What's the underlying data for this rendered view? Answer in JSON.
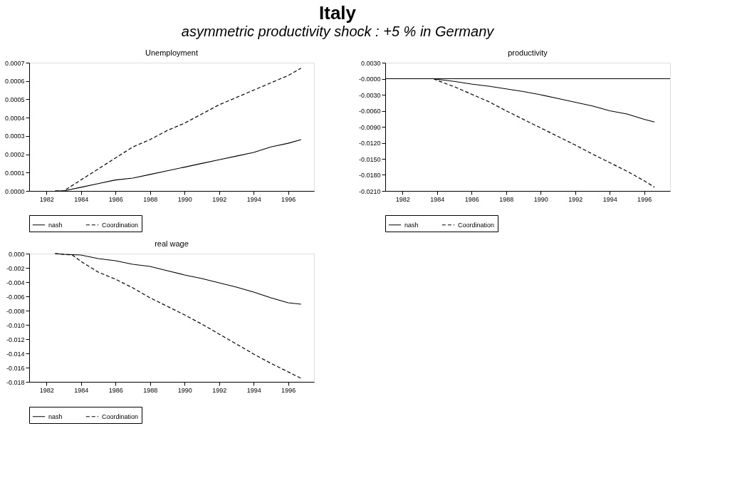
{
  "chart_data": [
    {
      "type": "line",
      "title": "Unemployment",
      "annotations": [
        "Italy",
        "asymmetric productivity shock : +5 % in Germany"
      ],
      "legend": "bottom",
      "grid": false,
      "marker": "none",
      "xlim": [
        1981,
        1997.5
      ],
      "xticks": [
        1982,
        1984,
        1986,
        1988,
        1990,
        1992,
        1994,
        1996
      ],
      "ylim": [
        0,
        0.0007
      ],
      "yticks": [
        {
          "value": 0,
          "label": "0.0000"
        },
        {
          "value": 0.0001,
          "label": "0.0001"
        },
        {
          "value": 0.0002,
          "label": "0.0002"
        },
        {
          "value": 0.0003,
          "label": "0.0003"
        },
        {
          "value": 0.0004,
          "label": "0.0004"
        },
        {
          "value": 0.0005,
          "label": "0.0005"
        },
        {
          "value": 0.0006,
          "label": "0.0006"
        },
        {
          "value": 0.0007,
          "label": "0.0007"
        }
      ],
      "series": [
        {
          "name": "nash",
          "color": "#000000",
          "line_style": "solid",
          "x": [
            1982.5,
            1983,
            1984,
            1985,
            1986,
            1987,
            1988,
            1989,
            1990,
            1991,
            1992,
            1993,
            1994,
            1995,
            1996,
            1996.75
          ],
          "values": [
            0,
            0,
            2e-05,
            4e-05,
            6e-05,
            7e-05,
            9e-05,
            0.00011,
            0.00013,
            0.00015,
            0.00017,
            0.00019,
            0.00021,
            0.00024,
            0.00026,
            0.00028
          ]
        },
        {
          "name": "Coordination",
          "color": "#000000",
          "line_style": "dashed",
          "x": [
            1982.5,
            1983,
            1984,
            1985,
            1986,
            1987,
            1988,
            1989,
            1990,
            1991,
            1992,
            1993,
            1994,
            1995,
            1996,
            1996.75
          ],
          "values": [
            0,
            0,
            6e-05,
            0.00012,
            0.00018,
            0.00024,
            0.00028,
            0.00033,
            0.00037,
            0.00042,
            0.00047,
            0.00051,
            0.00055,
            0.00059,
            0.00063,
            0.00067
          ]
        }
      ]
    },
    {
      "type": "line",
      "title": "productivity",
      "legend": "bottom",
      "grid": false,
      "marker": "none",
      "xlim": [
        1981,
        1997.5
      ],
      "xticks": [
        1982,
        1984,
        1986,
        1988,
        1990,
        1992,
        1994,
        1996
      ],
      "ylim": [
        -0.021,
        0.003
      ],
      "yticks": [
        {
          "value": 0.003,
          "label": "0.0030"
        },
        {
          "value": 0,
          "label": "-0.0000"
        },
        {
          "value": -0.003,
          "label": "-0.0030"
        },
        {
          "value": -0.006,
          "label": "-0.0060"
        },
        {
          "value": -0.009,
          "label": "-0.0090"
        },
        {
          "value": -0.012,
          "label": "-0.0120"
        },
        {
          "value": -0.015,
          "label": "-0.0150"
        },
        {
          "value": -0.018,
          "label": "-0.0180"
        },
        {
          "value": -0.021,
          "label": "-0.0210"
        }
      ],
      "ref_lines": [
        {
          "axis": "y",
          "value": 0,
          "color": "#000000"
        }
      ],
      "series": [
        {
          "name": "nash",
          "color": "#000000",
          "line_style": "solid",
          "x": [
            1983.8,
            1984,
            1985,
            1986,
            1987,
            1988,
            1989,
            1990,
            1991,
            1992,
            1993,
            1994,
            1995,
            1996,
            1996.6
          ],
          "values": [
            0,
            -0.0001,
            -0.0005,
            -0.001,
            -0.0014,
            -0.0019,
            -0.0024,
            -0.003,
            -0.0037,
            -0.0044,
            -0.0051,
            -0.006,
            -0.0066,
            -0.0076,
            -0.0081
          ]
        },
        {
          "name": "Coordination",
          "color": "#000000",
          "line_style": "dashed",
          "x": [
            1983.8,
            1984,
            1985,
            1986,
            1987,
            1988,
            1989,
            1990,
            1991,
            1992,
            1993,
            1994,
            1995,
            1996,
            1996.6
          ],
          "values": [
            0,
            -0.0003,
            -0.0015,
            -0.0029,
            -0.0043,
            -0.006,
            -0.0076,
            -0.0092,
            -0.0108,
            -0.0124,
            -0.0141,
            -0.0157,
            -0.0173,
            -0.0191,
            -0.0203
          ]
        }
      ]
    },
    {
      "type": "line",
      "title": "real wage",
      "legend": "bottom",
      "grid": false,
      "marker": "none",
      "xlim": [
        1981,
        1997.5
      ],
      "xticks": [
        1982,
        1984,
        1986,
        1988,
        1990,
        1992,
        1994,
        1996
      ],
      "ylim": [
        -0.018,
        0
      ],
      "yticks": [
        {
          "value": 0,
          "label": "0.000"
        },
        {
          "value": -0.002,
          "label": "-0.002"
        },
        {
          "value": -0.004,
          "label": "-0.004"
        },
        {
          "value": -0.006,
          "label": "-0.006"
        },
        {
          "value": -0.008,
          "label": "-0.008"
        },
        {
          "value": -0.01,
          "label": "-0.010"
        },
        {
          "value": -0.012,
          "label": "-0.012"
        },
        {
          "value": -0.014,
          "label": "-0.014"
        },
        {
          "value": -0.016,
          "label": "-0.016"
        },
        {
          "value": -0.018,
          "label": "-0.018"
        }
      ],
      "series": [
        {
          "name": "nash",
          "color": "#000000",
          "line_style": "solid",
          "x": [
            1982.5,
            1983,
            1984,
            1985,
            1986,
            1987,
            1988,
            1989,
            1990,
            1991,
            1992,
            1993,
            1994,
            1995,
            1996,
            1996.75
          ],
          "values": [
            0,
            -0.0001,
            -0.0002,
            -0.0007,
            -0.001,
            -0.0015,
            -0.0018,
            -0.0024,
            -0.003,
            -0.0035,
            -0.0041,
            -0.0047,
            -0.0054,
            -0.0062,
            -0.0069,
            -0.0071
          ]
        },
        {
          "name": "Coordination",
          "color": "#000000",
          "line_style": "dashed",
          "x": [
            1982.5,
            1983,
            1983.5,
            1984,
            1985,
            1986,
            1987,
            1988,
            1989,
            1990,
            1991,
            1992,
            1993,
            1994,
            1995,
            1996,
            1996.75
          ],
          "values": [
            0,
            -0.0001,
            -0.0002,
            -0.0011,
            -0.0026,
            -0.0036,
            -0.0048,
            -0.0062,
            -0.0074,
            -0.0086,
            -0.0099,
            -0.0113,
            -0.0127,
            -0.0141,
            -0.0154,
            -0.0166,
            -0.0175
          ]
        }
      ]
    }
  ]
}
